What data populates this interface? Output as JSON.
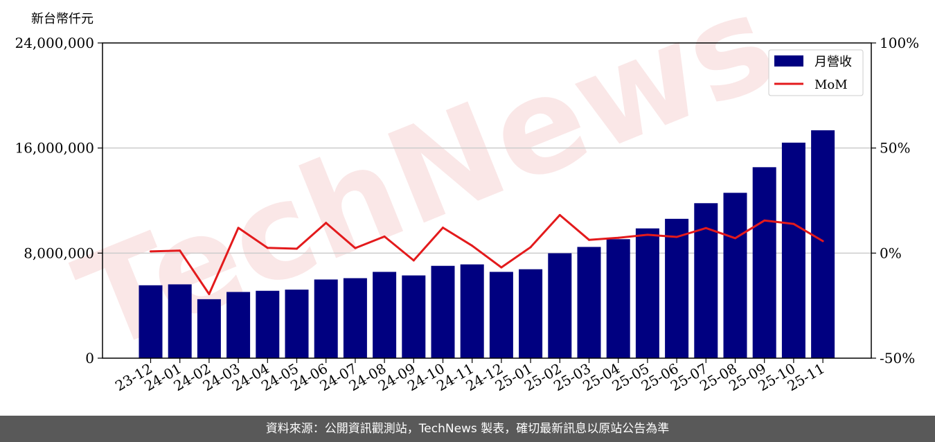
{
  "chart_data": {
    "type": "bar",
    "categories": [
      "23-12",
      "24-01",
      "24-02",
      "24-03",
      "24-04",
      "24-05",
      "24-06",
      "24-07",
      "24-08",
      "24-09",
      "24-10",
      "24-11",
      "24-12",
      "25-01",
      "25-02",
      "25-03",
      "25-04",
      "25-05",
      "25-06",
      "25-07",
      "25-08",
      "25-09",
      "25-10",
      "25-11"
    ],
    "series": [
      {
        "name": "月營收",
        "type": "bar",
        "axis": "left",
        "color": "#000080",
        "values": [
          5550000,
          5620000,
          4490000,
          5040000,
          5130000,
          5220000,
          5990000,
          6090000,
          6570000,
          6300000,
          7030000,
          7140000,
          6570000,
          6770000,
          7990000,
          8470000,
          9060000,
          9880000,
          10610000,
          11800000,
          12590000,
          14540000,
          16410000,
          17350000
        ]
      },
      {
        "name": "MoM",
        "type": "line",
        "axis": "right",
        "color": "#e31a1c",
        "values": [
          0.8,
          1.2,
          -19.5,
          12.0,
          2.5,
          2.1,
          14.4,
          2.4,
          7.9,
          -3.5,
          12.1,
          3.5,
          -6.8,
          2.8,
          18.1,
          6.3,
          7.3,
          8.7,
          7.7,
          11.9,
          7.1,
          15.5,
          13.9,
          5.7
        ]
      }
    ],
    "ylabel": "新台幣仟元",
    "ylim": [
      0,
      24000000
    ],
    "yticks": [
      "0",
      "8,000,000",
      "16,000,000",
      "24,000,000"
    ],
    "y2lim": [
      -50,
      100
    ],
    "y2ticks": [
      "-50%",
      "0%",
      "50%",
      "100%"
    ],
    "grid": "horizontal",
    "legend": "top-right"
  },
  "watermark": "TechNews",
  "footer": "資料來源：公開資訊觀測站，TechNews 製表，確切最新訊息以原站公告為準",
  "colors": {
    "bar": "#000080",
    "line": "#e31a1c",
    "footer_bg": "#595959"
  }
}
